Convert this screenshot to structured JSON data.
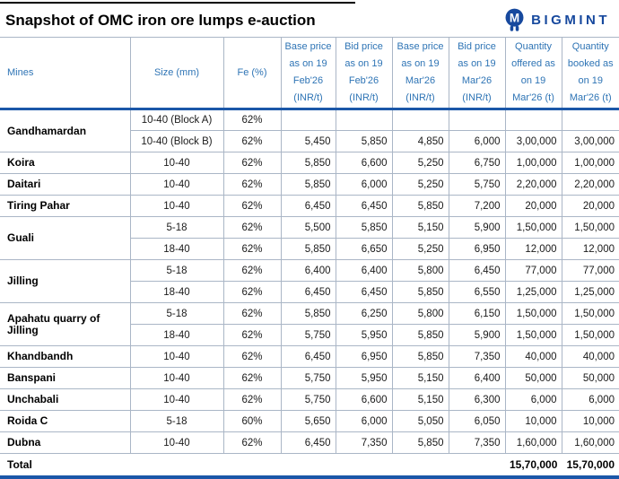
{
  "header": {
    "logo_text": "BIGMINT",
    "logo_icon": "bigmint-miner-icon"
  },
  "colors": {
    "logo_blue": "#17499E",
    "header_text_blue": "#2E74B5",
    "accent_border_blue": "#1B57A8",
    "grid_line": "#AAB6C6",
    "title_black": "#000000"
  },
  "chart_data": {
    "type": "table",
    "title": "Snapshot of OMC iron ore lumps e-auction",
    "columns": [
      "Mines",
      "Size (mm)",
      "Fe (%)",
      "Base price\nas on 19\nFeb'26\n(INR/t)",
      "Bid price\nas on 19\nFeb'26\n(INR/t)",
      "Base price\nas on 19\nMar'26\n(INR/t)",
      "Bid price\nas on 19\nMar'26\n(INR/t)",
      "Quantity\noffered as\non 19\nMar'26 (t)",
      "Quantity\nbooked as\non 19\nMar'26 (t)"
    ],
    "rows": [
      {
        "mine": "Gandhamardan",
        "mine_rowspan": 2,
        "size": "10-40 (Block A)",
        "fe": "62%",
        "values": [
          "",
          "",
          "",
          "",
          "",
          ""
        ]
      },
      {
        "size": "10-40 (Block B)",
        "fe": "62%",
        "values": [
          "5,450",
          "5,850",
          "4,850",
          "6,000",
          "3,00,000",
          "3,00,000"
        ]
      },
      {
        "mine": "Koira",
        "size": "10-40",
        "fe": "62%",
        "values": [
          "5,850",
          "6,600",
          "5,250",
          "6,750",
          "1,00,000",
          "1,00,000"
        ]
      },
      {
        "mine": "Daitari",
        "size": "10-40",
        "fe": "62%",
        "values": [
          "5,850",
          "6,000",
          "5,250",
          "5,750",
          "2,20,000",
          "2,20,000"
        ]
      },
      {
        "mine": "Tiring Pahar",
        "size": "10-40",
        "fe": "62%",
        "values": [
          "6,450",
          "6,450",
          "5,850",
          "7,200",
          "20,000",
          "20,000"
        ]
      },
      {
        "mine": "Guali",
        "mine_rowspan": 2,
        "size": "5-18",
        "fe": "62%",
        "values": [
          "5,500",
          "5,850",
          "5,150",
          "5,900",
          "1,50,000",
          "1,50,000"
        ]
      },
      {
        "size": "18-40",
        "fe": "62%",
        "values": [
          "5,850",
          "6,650",
          "5,250",
          "6,950",
          "12,000",
          "12,000"
        ]
      },
      {
        "mine": "Jilling",
        "mine_rowspan": 2,
        "size": "5-18",
        "fe": "62%",
        "values": [
          "6,400",
          "6,400",
          "5,800",
          "6,450",
          "77,000",
          "77,000"
        ]
      },
      {
        "size": "18-40",
        "fe": "62%",
        "values": [
          "6,450",
          "6,450",
          "5,850",
          "6,550",
          "1,25,000",
          "1,25,000"
        ]
      },
      {
        "mine": "Apahatu quarry of Jilling",
        "mine_rowspan": 2,
        "size": "5-18",
        "fe": "62%",
        "values": [
          "5,850",
          "6,250",
          "5,800",
          "6,150",
          "1,50,000",
          "1,50,000"
        ]
      },
      {
        "size": "18-40",
        "fe": "62%",
        "values": [
          "5,750",
          "5,950",
          "5,850",
          "5,900",
          "1,50,000",
          "1,50,000"
        ]
      },
      {
        "mine": "Khandbandh",
        "size": "10-40",
        "fe": "62%",
        "values": [
          "6,450",
          "6,950",
          "5,850",
          "7,350",
          "40,000",
          "40,000"
        ]
      },
      {
        "mine": "Banspani",
        "size": "10-40",
        "fe": "62%",
        "values": [
          "5,750",
          "5,950",
          "5,150",
          "6,400",
          "50,000",
          "50,000"
        ]
      },
      {
        "mine": "Unchabali",
        "size": "10-40",
        "fe": "62%",
        "values": [
          "5,750",
          "6,600",
          "5,150",
          "6,300",
          "6,000",
          "6,000"
        ]
      },
      {
        "mine": "Roida C",
        "size": "5-18",
        "fe": "60%",
        "values": [
          "5,650",
          "6,000",
          "5,050",
          "6,050",
          "10,000",
          "10,000"
        ]
      },
      {
        "mine": "Dubna",
        "size": "10-40",
        "fe": "62%",
        "values": [
          "6,450",
          "7,350",
          "5,850",
          "7,350",
          "1,60,000",
          "1,60,000"
        ]
      }
    ],
    "total": {
      "label": "Total",
      "quantity_offered": "15,70,000",
      "quantity_booked": "15,70,000"
    }
  }
}
